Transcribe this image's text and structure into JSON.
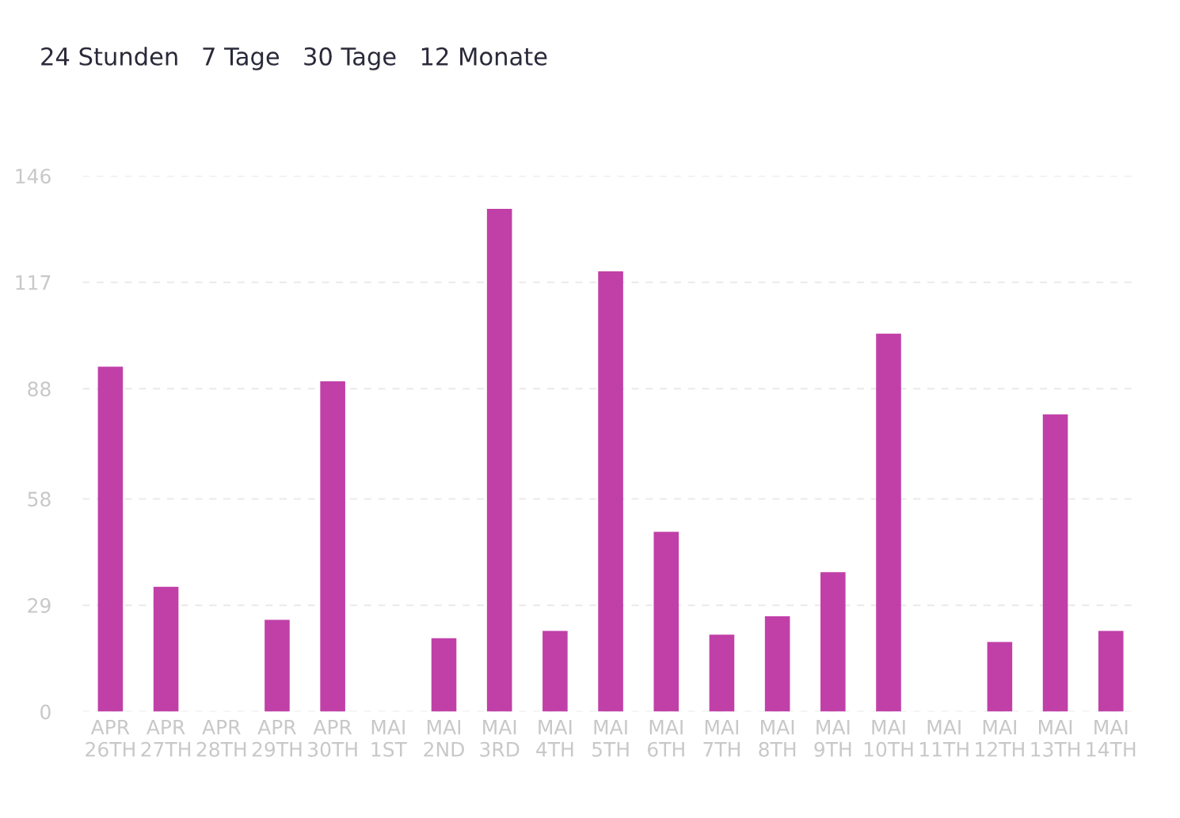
{
  "chart_data": {
    "type": "bar",
    "annotations": [
      "24 Stunden",
      "7 Tage",
      "30 Tage",
      "12 Monate"
    ],
    "categories": [
      "APR\n26TH",
      "APR\n27TH",
      "APR\n28TH",
      "APR\n29TH",
      "APR\n30TH",
      "MAI\n1ST",
      "MAI\n2ND",
      "MAI\n3RD",
      "MAI\n4TH",
      "MAI\n5TH",
      "MAI\n6TH",
      "MAI\n7TH",
      "MAI\n8TH",
      "MAI\n9TH",
      "MAI\n10TH",
      "MAI\n11TH",
      "MAI\n12TH",
      "MAI\n13TH",
      "MAI\n14TH"
    ],
    "series": [
      {
        "color": "#c040a8",
        "values": [
          94,
          34,
          0,
          25,
          90,
          0,
          20,
          137,
          22,
          120,
          49,
          21,
          26,
          38,
          103,
          0,
          19,
          81,
          22
        ]
      }
    ],
    "ylim": [
      0,
      146
    ],
    "yticks": [
      0,
      29,
      58,
      88,
      117,
      146
    ],
    "grid": "y",
    "legend": false
  }
}
